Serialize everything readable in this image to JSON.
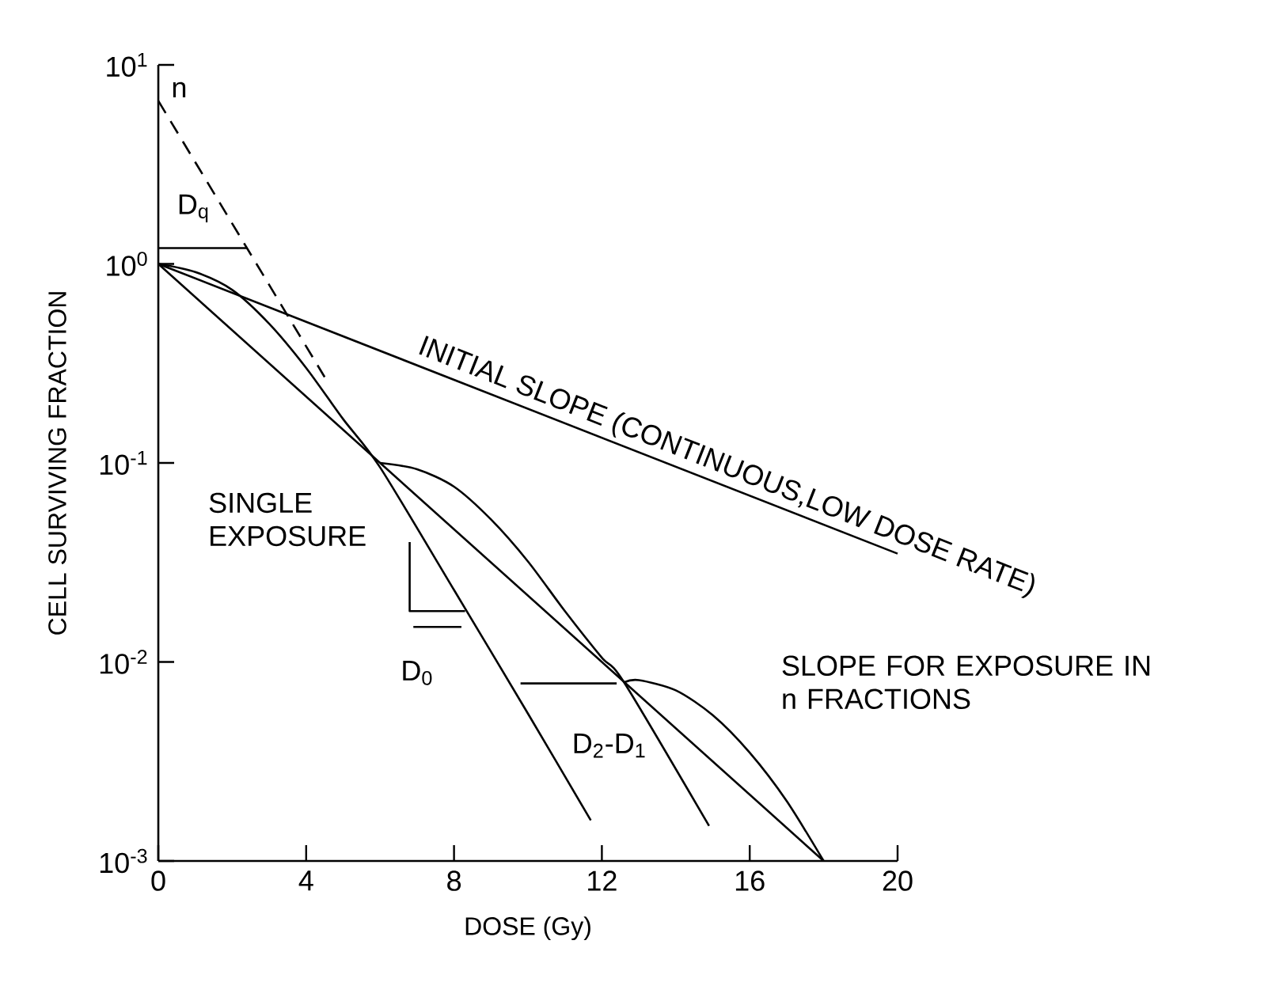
{
  "chart_data": {
    "type": "line",
    "xlabel": "DOSE (Gy)",
    "ylabel": "CELL SURVIVING FRACTION",
    "log": "y",
    "marker": "none",
    "line_style": "solid",
    "xlim": [
      0,
      20
    ],
    "ylim": [
      0.001,
      10
    ],
    "xticks": [
      0,
      4,
      8,
      12,
      16,
      20
    ],
    "yticks": [
      {
        "value": 10,
        "label": "10$^{1}$"
      },
      {
        "value": 1,
        "label": "10$^{0}$"
      },
      {
        "value": 0.1,
        "label": "10$^{-1}$"
      },
      {
        "value": 0.01,
        "label": "10$^{-2}$"
      },
      {
        "value": 0.001,
        "label": "10$^{-3}$"
      }
    ],
    "series": [
      {
        "color": "#000000",
        "x": [
          0,
          20
        ],
        "values": [
          1,
          0.035
        ]
      },
      {
        "color": "#000000",
        "x": [
          0,
          1,
          2,
          3,
          4,
          5,
          6,
          8,
          10,
          11.7
        ],
        "values": [
          1,
          0.91,
          0.74,
          0.5,
          0.3,
          0.166,
          0.095,
          0.023,
          0.0055,
          0.0016
        ]
      },
      {
        "color": "#000000",
        "x": [
          0,
          18
        ],
        "values": [
          1,
          0.001
        ]
      },
      {
        "color": "#000000",
        "x": [
          6,
          7,
          8,
          9,
          10,
          11,
          12,
          12.6,
          14.9
        ],
        "values": [
          0.1,
          0.093,
          0.076,
          0.052,
          0.032,
          0.018,
          0.0105,
          0.0079,
          0.0015
        ]
      },
      {
        "color": "#000000",
        "x": [
          12.6,
          13,
          14,
          15,
          16,
          17,
          18
        ],
        "values": [
          0.0079,
          0.0081,
          0.0072,
          0.0054,
          0.0035,
          0.002,
          0.001
        ]
      },
      {
        "color": "#000000",
        "line_style": "dashed",
        "x": [
          0,
          4.5
        ],
        "values": [
          6.6,
          0.27
        ]
      },
      {
        "color": "#000000",
        "x": [
          0,
          2.4
        ],
        "values": [
          1.2,
          1.2
        ]
      },
      {
        "color": "#000000",
        "x": [
          6.8,
          6.8,
          8.3
        ],
        "values": [
          0.04,
          0.018,
          0.018
        ]
      },
      {
        "color": "#000000",
        "x": [
          6.9,
          8.2
        ],
        "values": [
          0.015,
          0.015
        ]
      },
      {
        "color": "#000000",
        "x": [
          9.8,
          12.4
        ],
        "values": [
          0.0078,
          0.0078
        ]
      }
    ],
    "annotations": [
      "n",
      "D$_{q}$",
      "INITIAL SLOPE (CONTINUOUS,LOW DOSE RATE)",
      "SINGLE EXPOSURE",
      "D$_{0}$",
      "D$_{2}$-D$_{1}$",
      "SLOPE FOR EXPOSURE IN n FRACTIONS"
    ]
  }
}
